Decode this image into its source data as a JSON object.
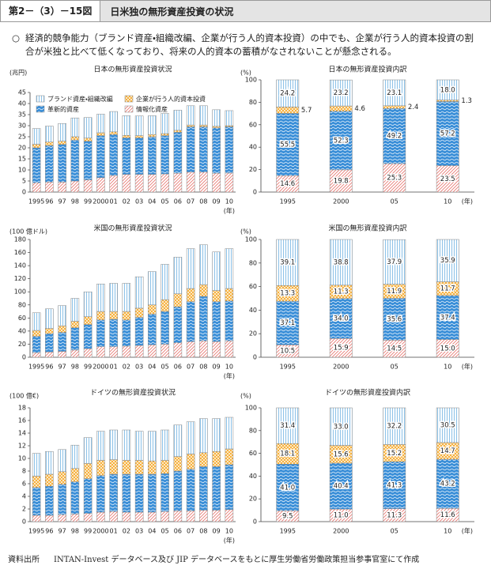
{
  "header": {
    "figure_number": "第2－（3）－15図",
    "title": "日米独の無形資産投資の状況"
  },
  "summary": {
    "bullet": "○",
    "text": "経済的競争能力（ブランド資産・組織改編、企業が行う人的資本投資）の中でも、企業が行う人的資本投資の割合が米独と比べて低くなっており、将来の人的資本の蓄積がなされないことが懸念される。"
  },
  "chart_data": [
    {
      "type": "bar",
      "stacked": true,
      "title": "日本の無形資産投資状況",
      "y_label": "(兆円)",
      "x_label": "(年)",
      "categories": [
        "1995",
        "96",
        "97",
        "98",
        "99",
        "2000",
        "01",
        "02",
        "03",
        "04",
        "05",
        "06",
        "07",
        "08",
        "09",
        "10"
      ],
      "ylim": [
        0,
        45
      ],
      "yticks": [
        0,
        5,
        10,
        15,
        20,
        25,
        30,
        35,
        40,
        45
      ],
      "legend": "upper left",
      "series": [
        {
          "name": "情報化資産",
          "color": "#e8766f",
          "pattern": "hatch",
          "values": [
            4.2,
            4.5,
            4.5,
            5,
            5.5,
            6.5,
            7.5,
            8,
            8,
            8,
            8.2,
            8.5,
            9,
            9,
            8.5,
            8.6
          ]
        },
        {
          "name": "革新的資産",
          "color": "#3b8fd8",
          "pattern": "wave",
          "values": [
            15.8,
            16.5,
            17,
            18.5,
            17.5,
            19,
            18.5,
            16.5,
            16.5,
            17,
            17.3,
            18.5,
            20.5,
            20.5,
            20.5,
            20.9
          ]
        },
        {
          "name": "企業が行う人的資本投資",
          "color": "#f5a623",
          "pattern": "check",
          "values": [
            1.6,
            1.6,
            1.5,
            1.5,
            1.4,
            1.3,
            1.2,
            1.1,
            1,
            1,
            0.9,
            0.9,
            0.8,
            0.8,
            0.7,
            0.5
          ]
        },
        {
          "name": "ブランド資産・組織改編",
          "color": "#8fc3e8",
          "pattern": "vstripe",
          "values": [
            7.1,
            7.2,
            8,
            8.5,
            9.3,
            8.4,
            9.2,
            8.9,
            8.9,
            8.5,
            9.1,
            9.1,
            8.7,
            8.7,
            7.5,
            6.8
          ]
        }
      ]
    },
    {
      "type": "bar",
      "stacked": true,
      "title": "日本の無形資産投資内訳",
      "y_label": "(%)",
      "x_label": "(年)",
      "categories": [
        "1995",
        "2000",
        "05",
        "10"
      ],
      "ylim": [
        0,
        100
      ],
      "yticks": [
        0,
        20,
        40,
        60,
        80,
        100
      ],
      "series": [
        {
          "color": "#e8766f",
          "pattern": "hatch",
          "values": [
            14.6,
            19.8,
            25.3,
            23.5
          ],
          "value_labels": [
            "14.6",
            "19.8",
            "25.3",
            "23.5"
          ]
        },
        {
          "color": "#3b8fd8",
          "pattern": "wave",
          "values": [
            55.5,
            52.3,
            49.2,
            57.2
          ],
          "value_labels": [
            "55.5",
            "52.3",
            "49.2",
            "57.2"
          ]
        },
        {
          "color": "#f5a623",
          "pattern": "check",
          "values": [
            5.7,
            4.6,
            2.4,
            1.3
          ],
          "value_labels": [
            "5.7",
            "4.6",
            "2.4",
            "1.3"
          ]
        },
        {
          "color": "#8fc3e8",
          "pattern": "vstripe",
          "values": [
            24.2,
            23.2,
            23.1,
            18.0
          ],
          "value_labels": [
            "24.2",
            "23.2",
            "23.1",
            "18.0"
          ]
        }
      ]
    },
    {
      "type": "bar",
      "stacked": true,
      "title": "米国の無形資産投資状況",
      "y_label": "(100 億ドル)",
      "x_label": "(年)",
      "categories": [
        "1995",
        "96",
        "97",
        "98",
        "99",
        "2000",
        "01",
        "02",
        "03",
        "04",
        "05",
        "06",
        "07",
        "08",
        "09",
        "10"
      ],
      "ylim": [
        0,
        180
      ],
      "yticks": [
        0,
        20,
        40,
        60,
        80,
        100,
        120,
        140,
        160,
        180
      ],
      "series": [
        {
          "color": "#e8766f",
          "pattern": "hatch",
          "values": [
            7,
            8,
            9,
            11,
            13,
            16,
            16,
            17,
            18,
            19,
            20,
            22,
            24,
            25,
            24,
            25
          ]
        },
        {
          "color": "#3b8fd8",
          "pattern": "wave",
          "values": [
            25,
            28,
            29,
            34,
            37,
            41,
            42,
            40,
            43,
            47,
            50,
            55,
            61,
            68,
            61,
            61
          ]
        },
        {
          "color": "#f5a623",
          "pattern": "check",
          "values": [
            9,
            8,
            10,
            10,
            12,
            13,
            12,
            13,
            14,
            14,
            18,
            20,
            20,
            18,
            17,
            19
          ]
        },
        {
          "color": "#8fc3e8",
          "pattern": "vstripe",
          "values": [
            27,
            30,
            31,
            35,
            38,
            42,
            43,
            43,
            48,
            51,
            54,
            56,
            61,
            61,
            59,
            61
          ]
        }
      ]
    },
    {
      "type": "bar",
      "stacked": true,
      "title": "米国の無形資産投資内訳",
      "y_label": "(%)",
      "x_label": "(年)",
      "categories": [
        "1995",
        "2000",
        "05",
        "10"
      ],
      "ylim": [
        0,
        100
      ],
      "yticks": [
        0,
        20,
        40,
        60,
        80,
        100
      ],
      "series": [
        {
          "color": "#e8766f",
          "pattern": "hatch",
          "values": [
            10.5,
            15.9,
            14.5,
            15.0
          ],
          "value_labels": [
            "10.5",
            "15.9",
            "14.5",
            "15.0"
          ]
        },
        {
          "color": "#3b8fd8",
          "pattern": "wave",
          "values": [
            37.1,
            34.0,
            35.6,
            37.4
          ],
          "value_labels": [
            "37.1",
            "34.0",
            "35.6",
            "37.4"
          ]
        },
        {
          "color": "#f5a623",
          "pattern": "check",
          "values": [
            13.3,
            11.3,
            11.9,
            11.7
          ],
          "value_labels": [
            "13.3",
            "11.3",
            "11.9",
            "11.7"
          ]
        },
        {
          "color": "#8fc3e8",
          "pattern": "vstripe",
          "values": [
            39.1,
            38.8,
            37.9,
            35.9
          ],
          "value_labels": [
            "39.1",
            "38.8",
            "37.9",
            "35.9"
          ]
        }
      ]
    },
    {
      "type": "bar",
      "stacked": true,
      "title": "ドイツの無形資産投資状況",
      "y_label": "(100 億€)",
      "x_label": "(年)",
      "categories": [
        "1995",
        "96",
        "97",
        "98",
        "99",
        "2000",
        "01",
        "02",
        "03",
        "04",
        "05",
        "06",
        "07",
        "08",
        "09",
        "10"
      ],
      "ylim": [
        0,
        18
      ],
      "yticks": [
        0,
        2,
        4,
        6,
        8,
        10,
        12,
        14,
        16,
        18
      ],
      "series": [
        {
          "color": "#e8766f",
          "pattern": "hatch",
          "values": [
            1.0,
            1.0,
            1.1,
            1.2,
            1.3,
            1.5,
            1.6,
            1.5,
            1.5,
            1.5,
            1.6,
            1.7,
            1.7,
            1.8,
            1.8,
            1.9
          ]
        },
        {
          "color": "#3b8fd8",
          "pattern": "wave",
          "values": [
            4.4,
            4.6,
            4.8,
            5.1,
            5.5,
            5.8,
            5.9,
            6.0,
            6.0,
            6.0,
            6.0,
            6.3,
            6.6,
            6.9,
            6.9,
            7.1
          ]
        },
        {
          "color": "#f5a623",
          "pattern": "check",
          "values": [
            1.8,
            1.9,
            2.0,
            2.1,
            2.4,
            2.4,
            2.3,
            2.2,
            2.2,
            2.1,
            2.1,
            2.3,
            2.4,
            2.2,
            2.4,
            2.5
          ]
        },
        {
          "color": "#8fc3e8",
          "pattern": "vstripe",
          "values": [
            3.6,
            3.6,
            3.5,
            3.7,
            4.1,
            4.6,
            4.7,
            4.8,
            4.6,
            4.7,
            4.8,
            5.0,
            5.1,
            5.4,
            5.2,
            5.0
          ]
        }
      ]
    },
    {
      "type": "bar",
      "stacked": true,
      "title": "ドイツの無形資産投資内訳",
      "y_label": "(%)",
      "x_label": "(年)",
      "categories": [
        "1995",
        "2000",
        "05",
        "10"
      ],
      "ylim": [
        0,
        100
      ],
      "yticks": [
        0,
        20,
        40,
        60,
        80,
        100
      ],
      "series": [
        {
          "color": "#e8766f",
          "pattern": "hatch",
          "values": [
            9.5,
            11.0,
            11.3,
            11.6
          ],
          "value_labels": [
            "9.5",
            "11.0",
            "11.3",
            "11.6"
          ]
        },
        {
          "color": "#3b8fd8",
          "pattern": "wave",
          "values": [
            41.0,
            40.4,
            41.3,
            43.2
          ],
          "value_labels": [
            "41.0",
            "40.4",
            "41.3",
            "43.2"
          ]
        },
        {
          "color": "#f5a623",
          "pattern": "check",
          "values": [
            18.1,
            15.6,
            15.2,
            14.7
          ],
          "value_labels": [
            "18.1",
            "15.6",
            "15.2",
            "14.7"
          ]
        },
        {
          "color": "#8fc3e8",
          "pattern": "vstripe",
          "values": [
            31.4,
            33.0,
            32.2,
            30.5
          ],
          "value_labels": [
            "31.4",
            "33.0",
            "32.2",
            "30.5"
          ]
        }
      ]
    }
  ],
  "source": {
    "label": "資料出所",
    "text": "INTAN-Invest データベース及び JIP データベースをもとに厚生労働省労働政策担当参事官室にて作成"
  }
}
